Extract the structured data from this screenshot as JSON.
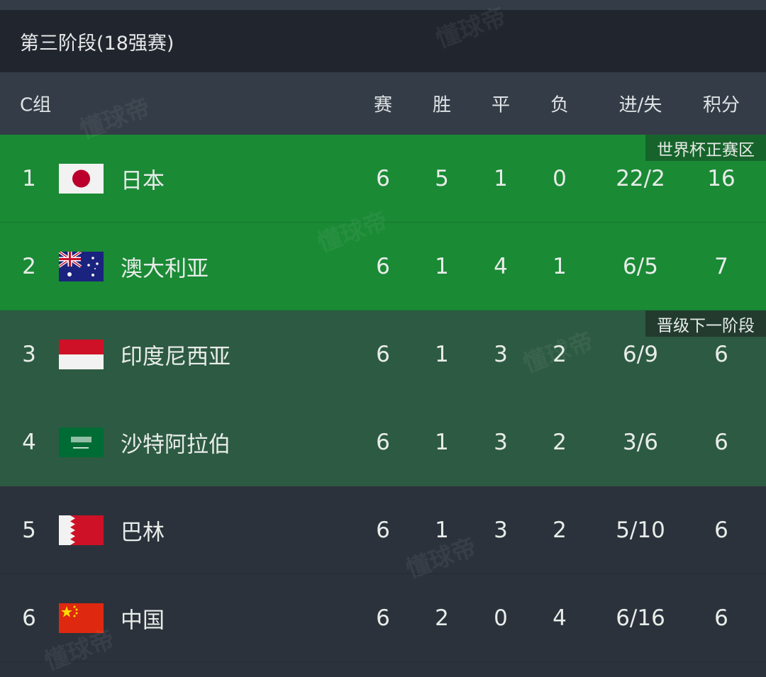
{
  "title": "第三阶段(18强赛)",
  "watermark": "懂球帝",
  "header": {
    "group": "C组",
    "cols": [
      "赛",
      "胜",
      "平",
      "负",
      "进/失",
      "积分"
    ]
  },
  "zones": {
    "world_cup": "世界杯正赛区",
    "next_stage": "晋级下一阶段"
  },
  "colors": {
    "qualify_green": "#1a8a35",
    "next_stage_green": "#2d5a42",
    "background": "#2c323c"
  },
  "rows": [
    {
      "rank": "1",
      "flag": "japan-flag",
      "team": "日本",
      "played": "6",
      "won": "5",
      "drawn": "1",
      "lost": "0",
      "goals": "22/2",
      "points": "16"
    },
    {
      "rank": "2",
      "flag": "australia-flag",
      "team": "澳大利亚",
      "played": "6",
      "won": "1",
      "drawn": "4",
      "lost": "1",
      "goals": "6/5",
      "points": "7"
    },
    {
      "rank": "3",
      "flag": "indonesia-flag",
      "team": "印度尼西亚",
      "played": "6",
      "won": "1",
      "drawn": "3",
      "lost": "2",
      "goals": "6/9",
      "points": "6"
    },
    {
      "rank": "4",
      "flag": "saudi-arabia-flag",
      "team": "沙特阿拉伯",
      "played": "6",
      "won": "1",
      "drawn": "3",
      "lost": "2",
      "goals": "3/6",
      "points": "6"
    },
    {
      "rank": "5",
      "flag": "bahrain-flag",
      "team": "巴林",
      "played": "6",
      "won": "1",
      "drawn": "3",
      "lost": "2",
      "goals": "5/10",
      "points": "6"
    },
    {
      "rank": "6",
      "flag": "china-flag",
      "team": "中国",
      "played": "6",
      "won": "2",
      "drawn": "0",
      "lost": "4",
      "goals": "6/16",
      "points": "6"
    }
  ]
}
